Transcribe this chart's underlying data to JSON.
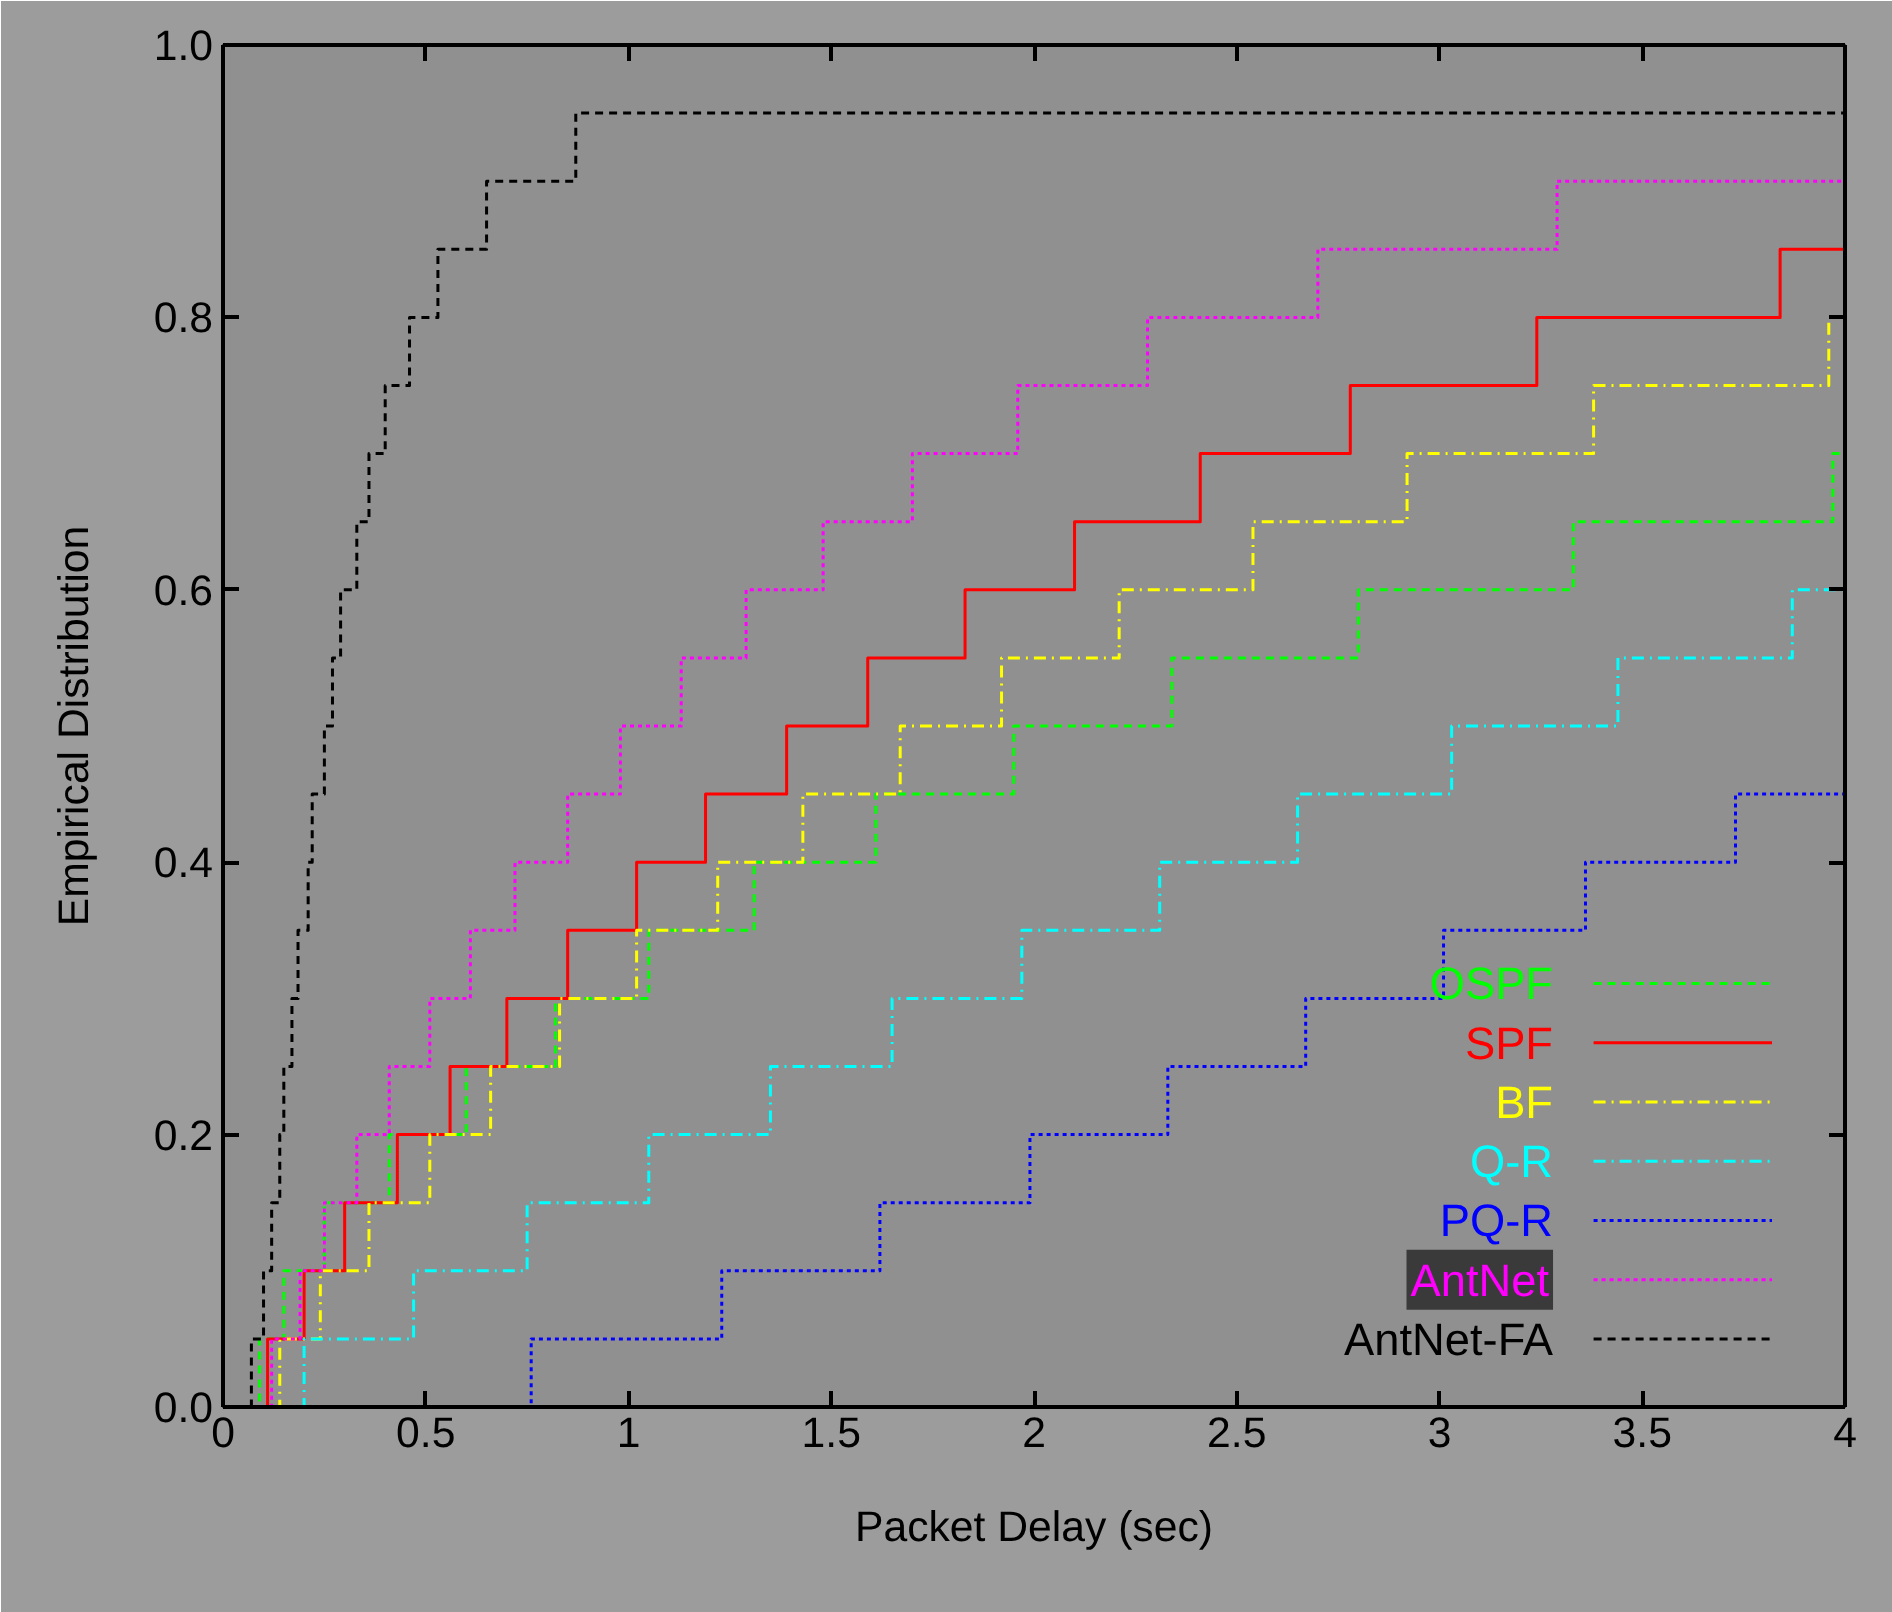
{
  "chart_data": {
    "type": "step",
    "xlabel": "Packet Delay (sec)",
    "ylabel": "Empirical Distribution",
    "xlim": [
      0,
      4
    ],
    "ylim": [
      0,
      1.0
    ],
    "xticks": [
      0,
      0.5,
      1,
      1.5,
      2,
      2.5,
      3,
      3.5,
      4
    ],
    "yticks": [
      {
        "value": 0,
        "label": "0.0"
      },
      0.2,
      0.4,
      0.6,
      0.8,
      {
        "value": 1,
        "label": "1.0"
      }
    ],
    "grid": false,
    "legend": "bottom right",
    "series": [
      {
        "name": "OSPF",
        "color": "#00ff00",
        "line_style": "dashed",
        "x": [
          0,
          0.09,
          0.15,
          0.25,
          0.41,
          0.6,
          0.82,
          1.05,
          1.31,
          1.61,
          1.95,
          2.34,
          2.8,
          3.33,
          3.97,
          4
        ],
        "values": [
          0,
          0.05,
          0.1,
          0.15,
          0.2,
          0.25,
          0.3,
          0.35,
          0.4,
          0.45,
          0.5,
          0.55,
          0.6,
          0.65,
          0.7,
          0.7
        ]
      },
      {
        "name": "SPF",
        "color": "#ff0000",
        "line_style": "solid",
        "x": [
          0,
          0.11,
          0.2,
          0.3,
          0.43,
          0.56,
          0.7,
          0.85,
          1.02,
          1.19,
          1.39,
          1.59,
          1.83,
          2.1,
          2.41,
          2.78,
          3.24,
          3.84,
          4
        ],
        "values": [
          0,
          0.05,
          0.1,
          0.15,
          0.2,
          0.25,
          0.3,
          0.35,
          0.4,
          0.45,
          0.5,
          0.55,
          0.6,
          0.65,
          0.7,
          0.75,
          0.8,
          0.85,
          0.85
        ]
      },
      {
        "name": "BF",
        "color": "#ffff00",
        "line_style": "dashdot",
        "x": [
          0,
          0.14,
          0.24,
          0.36,
          0.51,
          0.66,
          0.83,
          1.02,
          1.22,
          1.43,
          1.67,
          1.92,
          2.21,
          2.54,
          2.92,
          3.38,
          3.96,
          4
        ],
        "values": [
          0,
          0.05,
          0.1,
          0.15,
          0.2,
          0.25,
          0.3,
          0.35,
          0.4,
          0.45,
          0.5,
          0.55,
          0.6,
          0.65,
          0.7,
          0.75,
          0.8,
          0.8
        ]
      },
      {
        "name": "Q-R",
        "color": "#00ffff",
        "line_style": "dashdot",
        "x": [
          0,
          0.2,
          0.47,
          0.75,
          1.05,
          1.35,
          1.65,
          1.97,
          2.31,
          2.65,
          3.03,
          3.44,
          3.87,
          4
        ],
        "values": [
          0,
          0.05,
          0.1,
          0.15,
          0.2,
          0.25,
          0.3,
          0.35,
          0.4,
          0.45,
          0.5,
          0.55,
          0.6,
          0.6
        ]
      },
      {
        "name": "PQ-R",
        "color": "#0000ff",
        "line_style": "dotted",
        "x": [
          0,
          0.76,
          1.23,
          1.62,
          1.99,
          2.33,
          2.67,
          3.01,
          3.36,
          3.73,
          4
        ],
        "values": [
          0,
          0.05,
          0.1,
          0.15,
          0.2,
          0.25,
          0.3,
          0.35,
          0.4,
          0.45,
          0.45
        ]
      },
      {
        "name": "AntNet",
        "color": "#ff00ff",
        "line_style": "dotted",
        "x": [
          0,
          0.12,
          0.19,
          0.25,
          0.33,
          0.41,
          0.51,
          0.61,
          0.72,
          0.85,
          0.98,
          1.13,
          1.29,
          1.48,
          1.7,
          1.96,
          2.28,
          2.7,
          3.29,
          4
        ],
        "values": [
          0,
          0.05,
          0.1,
          0.15,
          0.2,
          0.25,
          0.3,
          0.35,
          0.4,
          0.45,
          0.5,
          0.55,
          0.6,
          0.65,
          0.7,
          0.75,
          0.8,
          0.85,
          0.9,
          0.9
        ]
      },
      {
        "name": "AntNet-FA",
        "color": "#000000",
        "line_style": "dashed",
        "x": [
          0,
          0.07,
          0.1,
          0.12,
          0.14,
          0.15,
          0.17,
          0.185,
          0.21,
          0.22,
          0.25,
          0.27,
          0.29,
          0.33,
          0.36,
          0.4,
          0.46,
          0.53,
          0.65,
          0.87,
          4
        ],
        "values": [
          0,
          0.05,
          0.1,
          0.15,
          0.2,
          0.25,
          0.3,
          0.35,
          0.4,
          0.45,
          0.5,
          0.55,
          0.6,
          0.65,
          0.7,
          0.75,
          0.8,
          0.85,
          0.9,
          0.95,
          0.95
        ]
      }
    ]
  }
}
